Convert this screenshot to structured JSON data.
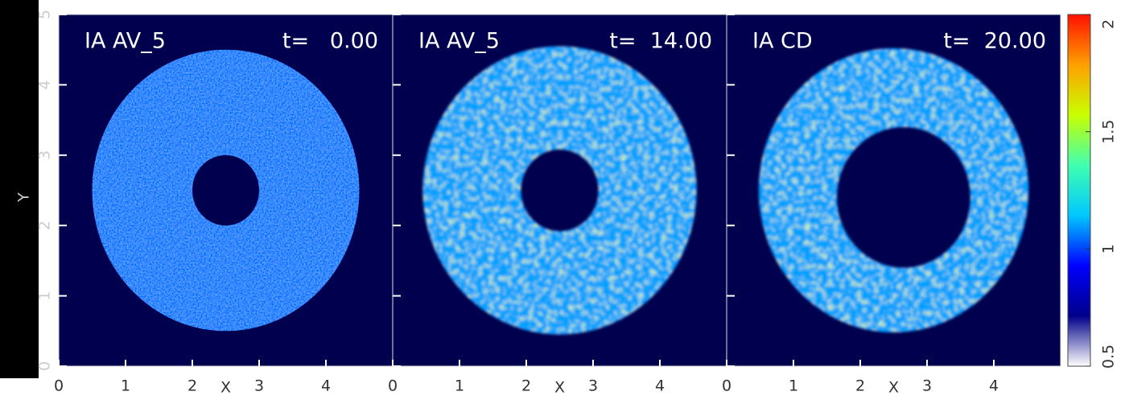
{
  "chart_data": {
    "type": "density-map",
    "xlabel": "X",
    "ylabel": "Y",
    "xlim": [
      0,
      5
    ],
    "ylim": [
      0,
      5
    ],
    "xticks": [
      0,
      1,
      2,
      3,
      4
    ],
    "yticks": [
      0,
      1,
      2,
      3,
      4,
      5
    ],
    "background": "#00004e",
    "panels": [
      {
        "label": "IA AV_5",
        "time_label": "t=   0.00",
        "ring": {
          "center": [
            2.5,
            2.5
          ],
          "outer_radius": 2.0,
          "hole_center": [
            2.5,
            2.5
          ],
          "inner_radius": 0.5,
          "density": 1.05
        }
      },
      {
        "label": "IA AV_5",
        "time_label": "t=  14.00",
        "ring": {
          "center": [
            2.5,
            2.5
          ],
          "outer_radius": 2.05,
          "hole_center": [
            2.5,
            2.5
          ],
          "inner_radius": 0.58,
          "density": 1.1
        }
      },
      {
        "label": "IA CD",
        "time_label": "t=  20.00",
        "ring": {
          "center": [
            2.5,
            2.5
          ],
          "outer_radius": 2.02,
          "hole_center": [
            2.65,
            2.4
          ],
          "inner_radius": 1.0,
          "density": 1.1
        }
      }
    ],
    "colorbar": {
      "lim": [
        0.5,
        2
      ],
      "ticks": [
        0.5,
        1,
        1.5,
        2
      ],
      "colors": [
        "#ffffff",
        "#00008a",
        "#0000ff",
        "#00c8ff",
        "#40ffb0",
        "#c8ff00",
        "#ffa000",
        "#ff1000"
      ]
    }
  }
}
